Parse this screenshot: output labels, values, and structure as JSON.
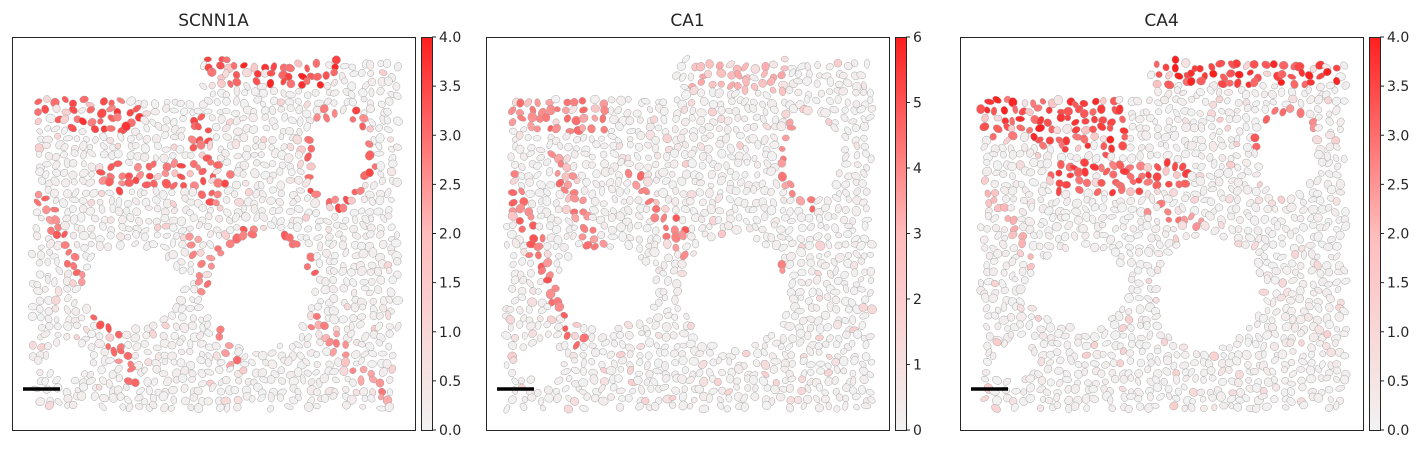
{
  "colors": {
    "low": "#f2f2f2",
    "mid": "#ffbcbc",
    "high": "#ff1f1f",
    "cell_edge": "#9a9a9a",
    "scalebar": "#000000",
    "frame": "#262626"
  },
  "chart_data": [
    {
      "type": "heatmap",
      "subtype": "spatial-cell-map",
      "title": "SCNN1A",
      "colorbar": {
        "range": [
          0,
          4.0
        ],
        "ticks": [
          "0.0",
          "0.5",
          "1.0",
          "1.5",
          "2.0",
          "2.5",
          "3.0",
          "3.5",
          "4.0"
        ]
      },
      "scalebar": true,
      "high_regions": [
        "top ridge",
        "upper-left band",
        "central chevron",
        "right loop rim",
        "left diagonal arms",
        "right diagonal arms"
      ]
    },
    {
      "type": "heatmap",
      "subtype": "spatial-cell-map",
      "title": "CA1",
      "colorbar": {
        "range": [
          0,
          6
        ],
        "ticks": [
          "0",
          "1",
          "2",
          "3",
          "4",
          "5",
          "6"
        ]
      },
      "scalebar": true,
      "high_regions": [
        "top ridge (sparse)",
        "upper-left band",
        "left diagonal arms",
        "central chevron",
        "right loop rim"
      ]
    },
    {
      "type": "heatmap",
      "subtype": "spatial-cell-map",
      "title": "CA4",
      "colorbar": {
        "range": [
          0,
          4.0
        ],
        "ticks": [
          "0.0",
          "0.5",
          "1.0",
          "1.5",
          "2.0",
          "2.5",
          "3.0",
          "3.5",
          "4.0"
        ]
      },
      "scalebar": true,
      "high_regions": [
        "top ridge (dense)",
        "upper-left block (dense)",
        "central chevron",
        "left diagonal arms (sparse)"
      ]
    }
  ]
}
